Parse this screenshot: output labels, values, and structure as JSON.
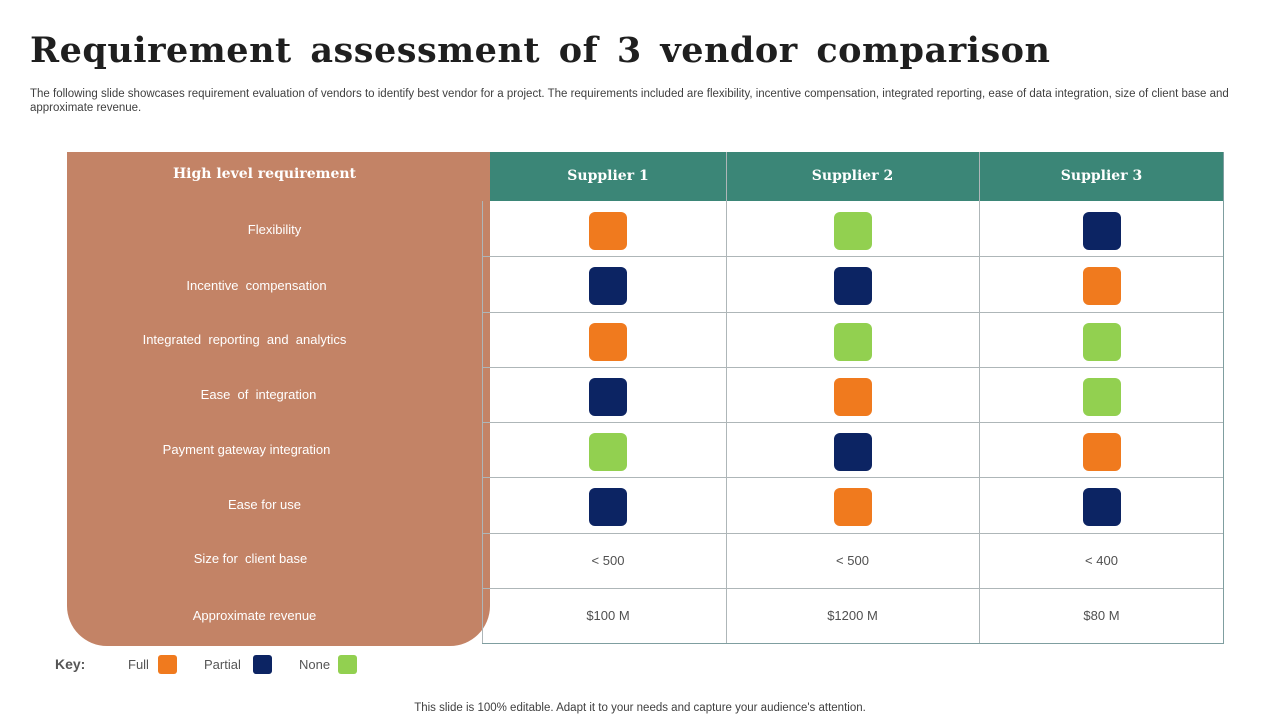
{
  "title": "Requirement assessment of 3 vendor comparison",
  "subtitle": "The following slide showcases requirement evaluation of vendors to identify best vendor for a project. The requirements included are flexibility, incentive compensation, integrated reporting, ease of data integration, size of client base and approximate revenue.",
  "table": {
    "requirement_header": "High level requirement",
    "suppliers": [
      "Supplier 1",
      "Supplier 2",
      "Supplier 3"
    ],
    "rows": [
      {
        "label": "Flexibility",
        "ratings": [
          "full",
          "none",
          "partial"
        ]
      },
      {
        "label": "Incentive  compensation",
        "ratings": [
          "partial",
          "partial",
          "full"
        ]
      },
      {
        "label": "Integrated  reporting  and  analytics",
        "ratings": [
          "full",
          "none",
          "none"
        ]
      },
      {
        "label": "Ease  of  integration",
        "ratings": [
          "partial",
          "full",
          "none"
        ]
      },
      {
        "label": "Payment gateway integration",
        "ratings": [
          "none",
          "partial",
          "full"
        ]
      },
      {
        "label": "Ease for use",
        "ratings": [
          "partial",
          "full",
          "partial"
        ]
      },
      {
        "label": "Size for  client base",
        "values": [
          "< 500",
          "< 500",
          "< 400"
        ]
      },
      {
        "label": "Approximate revenue",
        "values": [
          "$100 M",
          "$1200 M",
          "$80 M"
        ]
      }
    ]
  },
  "key": {
    "label": "Key:",
    "items": [
      {
        "label": "Full",
        "rating": "full"
      },
      {
        "label": "Partial",
        "rating": "partial"
      },
      {
        "label": "None",
        "rating": "none"
      }
    ]
  },
  "colors": {
    "full": "#f07a1e",
    "partial": "#0c2463",
    "none": "#92d050",
    "panel": "#c38366",
    "header": "#3b8677"
  },
  "footer": "This slide is 100% editable. Adapt it to your needs and capture your audience's attention."
}
